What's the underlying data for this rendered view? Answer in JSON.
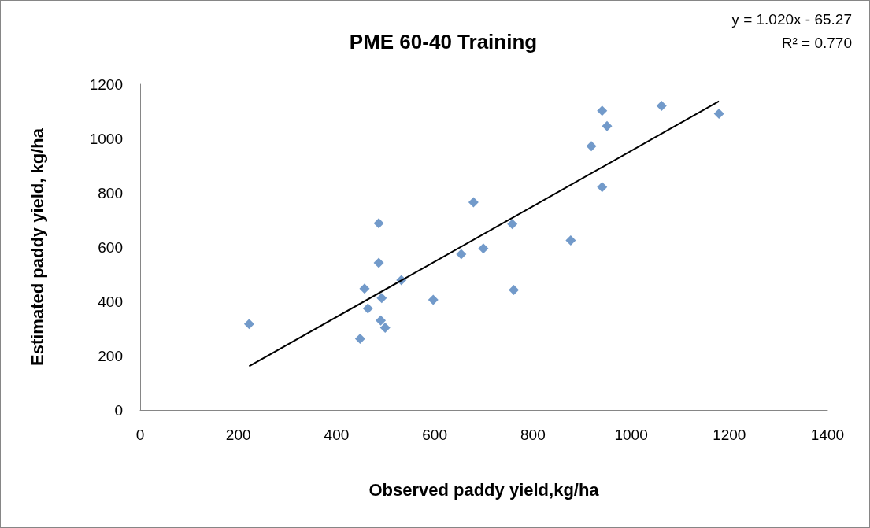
{
  "chart_data": {
    "type": "scatter",
    "title": "PME 60-40 Training",
    "xlabel": "Observed paddy yield,kg/ha",
    "ylabel": "Estimated paddy yield, kg/ha",
    "annotations": [
      "y = 1.020x - 65.27",
      "R² = 0.770"
    ],
    "xlim": [
      0,
      1400
    ],
    "xticks": [
      0,
      200,
      400,
      600,
      800,
      1000,
      1200,
      1400
    ],
    "ylim": [
      0,
      1200
    ],
    "yticks": [
      0,
      200,
      400,
      600,
      800,
      1000,
      1200
    ],
    "grid": false,
    "marker": "diamond",
    "series": [
      {
        "color": "#4f81bd",
        "x": [
          222,
          448,
          457,
          464,
          486,
          486,
          490,
          492,
          499,
          532,
          597,
          654,
          679,
          699,
          758,
          761,
          877,
          919,
          941,
          951,
          941,
          1062,
          1179
        ],
        "values": [
          317,
          262,
          447,
          374,
          688,
          542,
          330,
          412,
          303,
          478,
          406,
          574,
          765,
          595,
          685,
          442,
          625,
          972,
          1102,
          1046,
          821,
          1120,
          1091
        ]
      },
      {
        "type": "line",
        "color": "#000000",
        "marker": "none",
        "x": [
          222,
          1179
        ],
        "values": [
          161,
          1137
        ]
      }
    ]
  }
}
